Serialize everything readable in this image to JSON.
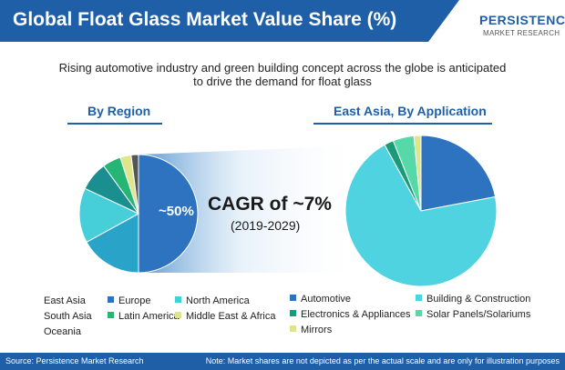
{
  "title": "Global Float Glass Market Value Share (%)",
  "logo": {
    "name": "PERSISTENCE",
    "sub": "MARKET RESEARCH"
  },
  "subtitle_line1": "Rising automotive industry and green building concept across the globe is anticipated",
  "subtitle_line2": "to drive the demand for float glass",
  "cagr": {
    "main": "CAGR of ~7%",
    "period": "(2019-2029)"
  },
  "colors": {
    "brand": "#1f5fa8",
    "east_asia": "#2e7bc4"
  },
  "chart_data": [
    {
      "type": "pie",
      "title": "By Region",
      "highlight_label": "~50%",
      "slices": [
        {
          "name": "East Asia",
          "value": 50,
          "color": "#2e73c0"
        },
        {
          "name": "Europe",
          "value": 17,
          "color": "#2aa3c8"
        },
        {
          "name": "North America",
          "value": 15,
          "color": "#47cfd9"
        },
        {
          "name": "South Asia",
          "value": 8,
          "color": "#1b8f8f"
        },
        {
          "name": "Latin America",
          "value": 5,
          "color": "#25b574"
        },
        {
          "name": "Middle East & Africa",
          "value": 3,
          "color": "#dfe58a"
        },
        {
          "name": "Oceania",
          "value": 2,
          "color": "#555555"
        }
      ],
      "legend": [
        {
          "name": "East Asia",
          "color": ""
        },
        {
          "name": "Europe",
          "color": "#2e73c0"
        },
        {
          "name": "North America",
          "color": "#47cfd9"
        },
        {
          "name": "South Asia",
          "color": ""
        },
        {
          "name": "Latin America",
          "color": "#25b574"
        },
        {
          "name": "Middle East & Africa",
          "color": "#dfe58a"
        },
        {
          "name": "Oceania",
          "color": ""
        }
      ]
    },
    {
      "type": "pie",
      "title": "East Asia, By Application",
      "slices": [
        {
          "name": "Automotive",
          "value": 22,
          "color": "#2e73c0"
        },
        {
          "name": "Building & Construction",
          "value": 70,
          "color": "#4fd3e0"
        },
        {
          "name": "Electronics & Appliances",
          "value": 2,
          "color": "#1b9a7a"
        },
        {
          "name": "Solar Panels/Solariums",
          "value": 4.5,
          "color": "#56d8a8"
        },
        {
          "name": "Mirrors",
          "value": 1.5,
          "color": "#dfe58a"
        }
      ]
    }
  ],
  "footer": {
    "source": "Source: Persistence Market Research",
    "note": "Note: Market shares are not depicted as per the actual scale and are only for illustration purposes"
  }
}
